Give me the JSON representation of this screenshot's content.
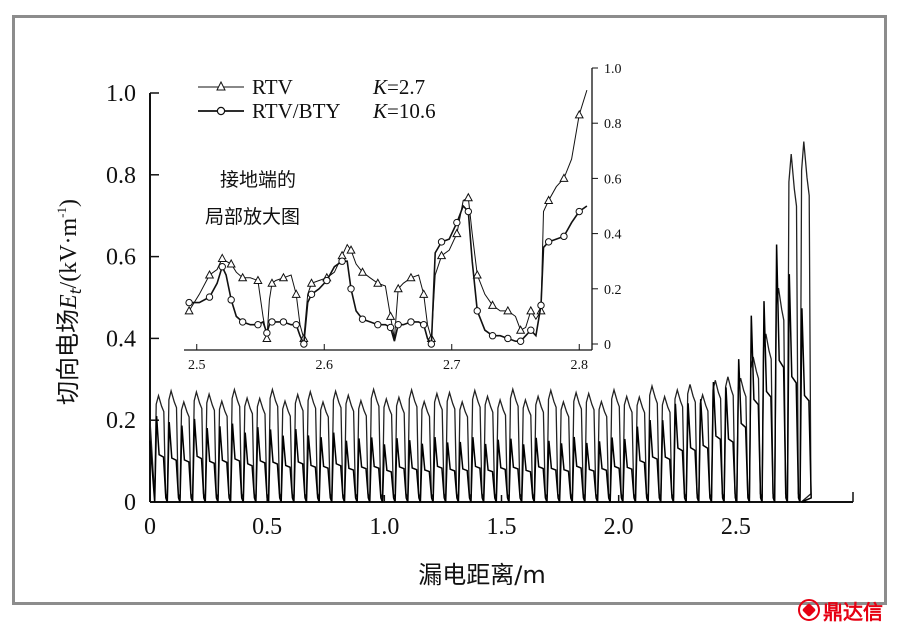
{
  "chart_data": [
    {
      "type": "line",
      "title": "",
      "xlabel": "漏电距离/m",
      "ylabel": "切向电场E_t/(kV·m⁻¹)",
      "ylabel_parts": {
        "prefix": "切向电场",
        "var": "E",
        "sub": "t",
        "suffix": "/(kV·m",
        "sup": "-1",
        "end": ")"
      },
      "xlim": [
        0,
        3.0
      ],
      "ylim": [
        0,
        1.0
      ],
      "x_ticks": [
        "0",
        "0.5",
        "1.0",
        "1.5",
        "2.0",
        "2.5"
      ],
      "y_ticks": [
        "0",
        "0.2",
        "0.4",
        "0.6",
        "0.8",
        "1.0"
      ],
      "grid": false,
      "series": [
        {
          "name": "RTV",
          "K": "K=2.7",
          "peak_envelope": [
            [
              0.05,
              0.26
            ],
            [
              1.0,
              0.26
            ],
            [
              2.0,
              0.26
            ],
            [
              2.4,
              0.28
            ],
            [
              2.6,
              0.34
            ],
            [
              2.7,
              0.55
            ],
            [
              2.77,
              0.93
            ]
          ]
        },
        {
          "name": "RTV/BTY",
          "K": "K=10.6",
          "peak_envelope": [
            [
              0.05,
              0.2
            ],
            [
              1.0,
              0.15
            ],
            [
              2.0,
              0.15
            ],
            [
              2.5,
              0.3
            ],
            [
              2.7,
              0.62
            ],
            [
              2.78,
              0.5
            ]
          ]
        }
      ],
      "period_m": 0.054,
      "end_x": 2.78
    },
    {
      "type": "line",
      "title": "接地端的局部放大图",
      "annotation_lines": [
        "接地端的",
        "局部放大图"
      ],
      "xlim": [
        2.49,
        2.81
      ],
      "ylim": [
        0,
        1.0
      ],
      "x_ticks": [
        "2.5",
        "2.6",
        "2.7",
        "2.8"
      ],
      "y_ticks": [
        "0",
        "0.2",
        "0.4",
        "0.6",
        "0.8",
        "1.0"
      ],
      "legend_position": "top-left",
      "series": [
        {
          "name": "RTV",
          "K": "K=2.7",
          "marker": "triangle",
          "x": [
            2.494,
            2.502,
            2.51,
            2.516,
            2.52,
            2.523,
            2.527,
            2.531,
            2.536,
            2.542,
            2.548,
            2.552,
            2.555,
            2.557,
            2.559,
            2.562,
            2.568,
            2.574,
            2.578,
            2.581,
            2.584,
            2.587,
            2.59,
            2.596,
            2.602,
            2.608,
            2.614,
            2.618,
            2.621,
            2.625,
            2.63,
            2.636,
            2.642,
            2.648,
            2.652,
            2.655,
            2.658,
            2.662,
            2.668,
            2.674,
            2.678,
            2.681,
            2.684,
            2.687,
            2.692,
            2.698,
            2.704,
            2.709,
            2.713,
            2.716,
            2.72,
            2.726,
            2.732,
            2.738,
            2.744,
            2.75,
            2.754,
            2.758,
            2.762,
            2.766,
            2.77,
            2.772,
            2.776,
            2.782,
            2.788,
            2.794,
            2.8,
            2.806
          ],
          "y": [
            0.12,
            0.18,
            0.25,
            0.27,
            0.31,
            0.3,
            0.29,
            0.26,
            0.24,
            0.24,
            0.23,
            0.1,
            0.02,
            0.16,
            0.22,
            0.23,
            0.24,
            0.25,
            0.18,
            0.07,
            0.02,
            0.18,
            0.22,
            0.23,
            0.24,
            0.26,
            0.32,
            0.36,
            0.34,
            0.29,
            0.26,
            0.24,
            0.22,
            0.21,
            0.1,
            0.02,
            0.2,
            0.22,
            0.24,
            0.25,
            0.18,
            0.07,
            0.02,
            0.25,
            0.32,
            0.34,
            0.4,
            0.52,
            0.53,
            0.4,
            0.25,
            0.18,
            0.14,
            0.12,
            0.12,
            0.1,
            0.05,
            0.06,
            0.12,
            0.09,
            0.12,
            0.48,
            0.52,
            0.57,
            0.6,
            0.67,
            0.83,
            0.92
          ]
        },
        {
          "name": "RTV/BTY",
          "K": "K=10.6",
          "marker": "circle",
          "x": [
            2.494,
            2.502,
            2.51,
            2.516,
            2.52,
            2.523,
            2.527,
            2.531,
            2.536,
            2.542,
            2.548,
            2.552,
            2.555,
            2.557,
            2.559,
            2.562,
            2.568,
            2.574,
            2.578,
            2.581,
            2.584,
            2.587,
            2.59,
            2.596,
            2.602,
            2.608,
            2.614,
            2.618,
            2.621,
            2.625,
            2.63,
            2.636,
            2.642,
            2.648,
            2.652,
            2.655,
            2.658,
            2.662,
            2.668,
            2.674,
            2.678,
            2.681,
            2.684,
            2.687,
            2.692,
            2.698,
            2.704,
            2.709,
            2.713,
            2.716,
            2.72,
            2.726,
            2.732,
            2.738,
            2.744,
            2.75,
            2.754,
            2.758,
            2.762,
            2.766,
            2.77,
            2.772,
            2.776,
            2.782,
            2.788,
            2.794,
            2.8,
            2.806
          ],
          "y": [
            0.15,
            0.15,
            0.17,
            0.22,
            0.28,
            0.25,
            0.16,
            0.1,
            0.08,
            0.07,
            0.07,
            0.08,
            0.04,
            0.07,
            0.08,
            0.08,
            0.08,
            0.07,
            0.07,
            0.03,
            0.0,
            0.15,
            0.18,
            0.2,
            0.23,
            0.28,
            0.3,
            0.3,
            0.2,
            0.12,
            0.09,
            0.08,
            0.07,
            0.07,
            0.06,
            0.01,
            0.07,
            0.07,
            0.08,
            0.08,
            0.07,
            0.02,
            0.0,
            0.33,
            0.37,
            0.38,
            0.44,
            0.5,
            0.48,
            0.3,
            0.12,
            0.05,
            0.03,
            0.03,
            0.02,
            0.01,
            0.01,
            0.03,
            0.05,
            0.03,
            0.14,
            0.35,
            0.37,
            0.38,
            0.39,
            0.44,
            0.48,
            0.5
          ]
        }
      ]
    }
  ],
  "logo": {
    "text": "鼎达信"
  }
}
